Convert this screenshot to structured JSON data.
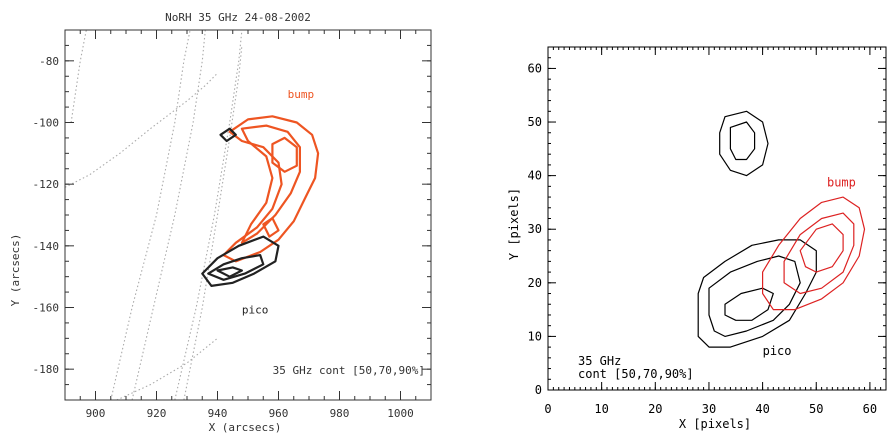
{
  "chart_data": [
    {
      "type": "contour",
      "title": "NoRH 35 GHz 24-08-2002",
      "xlabel": "X (arcsecs)",
      "ylabel": "Y (arcsecs)",
      "xlim": [
        890,
        1010
      ],
      "ylim": [
        -190,
        -70
      ],
      "xticks": [
        900,
        920,
        940,
        960,
        980,
        1000
      ],
      "yticks": [
        -80,
        -100,
        -120,
        -140,
        -160,
        -180
      ],
      "annotation": "35 GHz cont [50,70,90%]",
      "colors": {
        "bump": "#ee5522",
        "pico": "#222222",
        "limb": "#aaaaaa"
      },
      "series": [
        {
          "name": "bump",
          "color": "#ee5522",
          "contours": [
            [
              [
                944,
                -103
              ],
              [
                950,
                -99
              ],
              [
                958,
                -98
              ],
              [
                966,
                -100
              ],
              [
                971,
                -104
              ],
              [
                973,
                -110
              ],
              [
                972,
                -118
              ],
              [
                969,
                -124
              ],
              [
                965,
                -132
              ],
              [
                960,
                -138
              ],
              [
                954,
                -142
              ],
              [
                946,
                -145
              ],
              [
                942,
                -143
              ],
              [
                946,
                -139
              ],
              [
                953,
                -134
              ],
              [
                958,
                -128
              ],
              [
                961,
                -120
              ],
              [
                960,
                -113
              ],
              [
                955,
                -108
              ],
              [
                948,
                -106
              ]
            ],
            [
              [
                948,
                -102
              ],
              [
                956,
                -101
              ],
              [
                963,
                -103
              ],
              [
                967,
                -108
              ],
              [
                967,
                -116
              ],
              [
                964,
                -123
              ],
              [
                959,
                -130
              ],
              [
                953,
                -136
              ],
              [
                948,
                -139
              ],
              [
                951,
                -133
              ],
              [
                956,
                -126
              ],
              [
                958,
                -118
              ],
              [
                956,
                -111
              ],
              [
                950,
                -106
              ]
            ],
            [
              [
                958,
                -107
              ],
              [
                962,
                -105
              ],
              [
                966,
                -108
              ],
              [
                966,
                -114
              ],
              [
                962,
                -116
              ],
              [
                958,
                -113
              ]
            ],
            [
              [
                955,
                -133
              ],
              [
                958,
                -131
              ],
              [
                960,
                -135
              ],
              [
                957,
                -137
              ]
            ]
          ]
        },
        {
          "name": "pico",
          "color": "#222222",
          "contours": [
            [
              [
                935,
                -149
              ],
              [
                940,
                -144
              ],
              [
                947,
                -140
              ],
              [
                955,
                -137
              ],
              [
                960,
                -140
              ],
              [
                959,
                -145
              ],
              [
                952,
                -149
              ],
              [
                945,
                -152
              ],
              [
                938,
                -153
              ]
            ],
            [
              [
                937,
                -149
              ],
              [
                942,
                -146
              ],
              [
                948,
                -144
              ],
              [
                954,
                -143
              ],
              [
                955,
                -146
              ],
              [
                949,
                -149
              ],
              [
                942,
                -151
              ]
            ],
            [
              [
                940,
                -148
              ],
              [
                945,
                -147
              ],
              [
                948,
                -148
              ],
              [
                944,
                -150
              ]
            ],
            [
              [
                941,
                -104
              ],
              [
                944,
                -102
              ],
              [
                946,
                -104
              ],
              [
                943,
                -106
              ]
            ]
          ]
        }
      ],
      "limb_lines": [
        [
          [
            890,
            -121
          ],
          [
            898,
            -117
          ],
          [
            908,
            -110
          ],
          [
            918,
            -102
          ],
          [
            930,
            -93
          ],
          [
            936,
            -88
          ],
          [
            940,
            -84
          ]
        ],
        [
          [
            892,
            -100
          ],
          [
            895,
            -80
          ],
          [
            897,
            -70
          ]
        ],
        [
          [
            905,
            -190
          ],
          [
            912,
            -160
          ],
          [
            920,
            -130
          ],
          [
            926,
            -100
          ],
          [
            929,
            -80
          ],
          [
            931,
            -70
          ]
        ],
        [
          [
            912,
            -190
          ],
          [
            919,
            -160
          ],
          [
            926,
            -130
          ],
          [
            932,
            -100
          ],
          [
            935,
            -80
          ],
          [
            936,
            -70
          ]
        ],
        [
          [
            926,
            -190
          ],
          [
            933,
            -160
          ],
          [
            939,
            -130
          ],
          [
            944,
            -100
          ],
          [
            947,
            -80
          ],
          [
            948,
            -70
          ]
        ],
        [
          [
            929,
            -190
          ],
          [
            935,
            -160
          ],
          [
            940,
            -130
          ],
          [
            944,
            -105
          ],
          [
            947,
            -85
          ],
          [
            948,
            -75
          ]
        ],
        [
          [
            907,
            -190
          ],
          [
            918,
            -185
          ],
          [
            930,
            -178
          ],
          [
            940,
            -170
          ]
        ]
      ],
      "labels": [
        {
          "text": "bump",
          "x": 963,
          "y": -92,
          "color": "#ee5522"
        },
        {
          "text": "pico",
          "x": 948,
          "y": -162,
          "color": "#222222"
        }
      ]
    },
    {
      "type": "contour",
      "xlabel": "X [pixels]",
      "ylabel": "Y [pixels]",
      "xlim": [
        0,
        63
      ],
      "ylim": [
        0,
        64
      ],
      "xticks": [
        0,
        10,
        20,
        30,
        40,
        50,
        60
      ],
      "yticks": [
        0,
        10,
        20,
        30,
        40,
        50,
        60
      ],
      "annotation_lines": [
        "35 GHz",
        "cont [50,70,90%]"
      ],
      "series": [
        {
          "name": "pico",
          "color": "#000000",
          "contours": [
            [
              [
                33,
                51
              ],
              [
                37,
                52
              ],
              [
                40,
                50
              ],
              [
                41,
                46
              ],
              [
                40,
                42
              ],
              [
                37,
                40
              ],
              [
                34,
                41
              ],
              [
                32,
                44
              ],
              [
                32,
                48
              ]
            ],
            [
              [
                34,
                49
              ],
              [
                37,
                50
              ],
              [
                38.5,
                48
              ],
              [
                38.5,
                45
              ],
              [
                37,
                43
              ],
              [
                35,
                43
              ],
              [
                34,
                45
              ]
            ],
            [
              [
                29,
                21
              ],
              [
                33,
                24
              ],
              [
                38,
                27
              ],
              [
                43,
                28
              ],
              [
                47,
                28
              ],
              [
                50,
                26
              ],
              [
                50,
                22
              ],
              [
                48,
                18
              ],
              [
                45,
                13
              ],
              [
                40,
                10
              ],
              [
                34,
                8
              ],
              [
                30,
                8
              ],
              [
                28,
                10
              ],
              [
                28,
                14
              ],
              [
                28,
                18
              ]
            ],
            [
              [
                30,
                19
              ],
              [
                34,
                22
              ],
              [
                39,
                24
              ],
              [
                43,
                25
              ],
              [
                46,
                24
              ],
              [
                47,
                20
              ],
              [
                45,
                16
              ],
              [
                42,
                13
              ],
              [
                37,
                11
              ],
              [
                33,
                10
              ],
              [
                31,
                11
              ],
              [
                30,
                14
              ]
            ],
            [
              [
                33,
                16
              ],
              [
                36,
                18
              ],
              [
                40,
                19
              ],
              [
                42,
                18
              ],
              [
                41,
                15
              ],
              [
                38,
                13
              ],
              [
                35,
                13
              ],
              [
                33,
                14
              ]
            ]
          ]
        },
        {
          "name": "bump",
          "color": "#dd2222",
          "contours": [
            [
              [
                40,
                22
              ],
              [
                43,
                27
              ],
              [
                47,
                32
              ],
              [
                51,
                35
              ],
              [
                55,
                36
              ],
              [
                58,
                34
              ],
              [
                59,
                30
              ],
              [
                58,
                25
              ],
              [
                55,
                20
              ],
              [
                51,
                17
              ],
              [
                46,
                15
              ],
              [
                42,
                15
              ],
              [
                40,
                18
              ]
            ],
            [
              [
                44,
                24
              ],
              [
                47,
                29
              ],
              [
                51,
                32
              ],
              [
                55,
                33
              ],
              [
                57,
                31
              ],
              [
                57,
                27
              ],
              [
                55,
                22
              ],
              [
                51,
                19
              ],
              [
                47,
                18
              ],
              [
                44,
                20
              ]
            ],
            [
              [
                47,
                26
              ],
              [
                50,
                30
              ],
              [
                53,
                31
              ],
              [
                55,
                29
              ],
              [
                55,
                26
              ],
              [
                53,
                23
              ],
              [
                50,
                22
              ],
              [
                48,
                23
              ]
            ]
          ]
        }
      ],
      "labels": [
        {
          "text": "bump",
          "x": 52,
          "y": 38,
          "color": "#dd2222"
        },
        {
          "text": "pico",
          "x": 40,
          "y": 6.5,
          "color": "#000000"
        }
      ]
    }
  ]
}
